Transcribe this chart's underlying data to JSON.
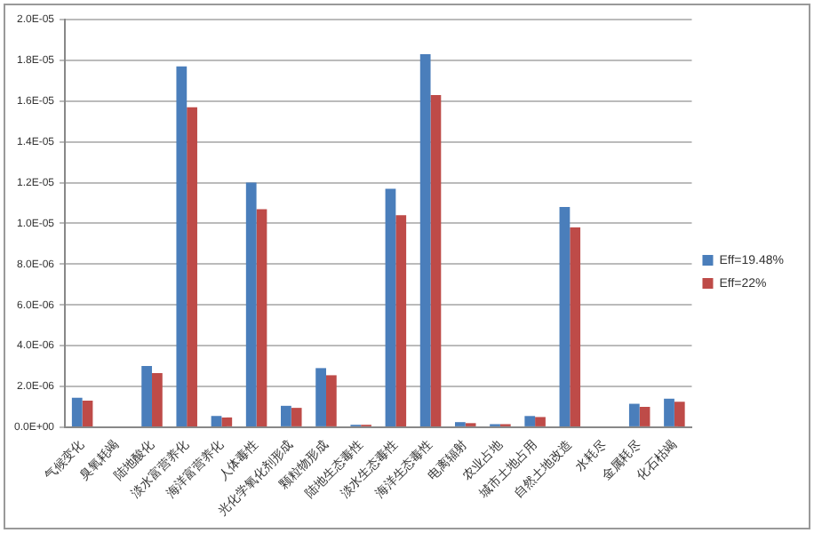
{
  "chart_data": {
    "type": "bar",
    "categories": [
      "气候变化",
      "臭氧耗竭",
      "陆地酸化",
      "淡水富营养化",
      "海洋富营养化",
      "人体毒性",
      "光化学氧化剂形成",
      "颗粒物形成",
      "陆地生态毒性",
      "淡水生态毒性",
      "海洋生态毒性",
      "电离辐射",
      "农业占地",
      "城市土地占用",
      "自然土地改造",
      "水耗尽",
      "金属耗尽",
      "化石枯竭"
    ],
    "series": [
      {
        "name": "Eff=19.48%",
        "color": "#4a7ebb",
        "values": [
          1.45e-06,
          0,
          3e-06,
          1.77e-05,
          5.5e-07,
          1.2e-05,
          1.05e-06,
          2.9e-06,
          1.2e-07,
          1.17e-05,
          1.83e-05,
          2.5e-07,
          1.5e-07,
          5.5e-07,
          1.08e-05,
          0,
          1.15e-06,
          1.4e-06
        ]
      },
      {
        "name": "Eff=22%",
        "color": "#be4b48",
        "values": [
          1.3e-06,
          0,
          2.65e-06,
          1.57e-05,
          4.8e-07,
          1.07e-05,
          9.5e-07,
          2.55e-06,
          1.2e-07,
          1.04e-05,
          1.63e-05,
          2e-07,
          1.5e-07,
          5e-07,
          9.8e-06,
          0,
          1e-06,
          1.25e-06
        ]
      }
    ],
    "ylim": [
      0,
      2e-05
    ],
    "yticks": [
      {
        "value": 0,
        "label": "0.0E+00"
      },
      {
        "value": 2e-06,
        "label": "2.0E-06"
      },
      {
        "value": 4e-06,
        "label": "4.0E-06"
      },
      {
        "value": 6e-06,
        "label": "6.0E-06"
      },
      {
        "value": 8e-06,
        "label": "8.0E-06"
      },
      {
        "value": 1e-05,
        "label": "1.0E-05"
      },
      {
        "value": 1.2e-05,
        "label": "1.2E-05"
      },
      {
        "value": 1.4e-05,
        "label": "1.4E-05"
      },
      {
        "value": 1.6e-05,
        "label": "1.6E-05"
      },
      {
        "value": 1.8e-05,
        "label": "1.8E-05"
      },
      {
        "value": 2e-05,
        "label": "2.0E-05"
      }
    ],
    "grid": "y",
    "legend": "right"
  }
}
